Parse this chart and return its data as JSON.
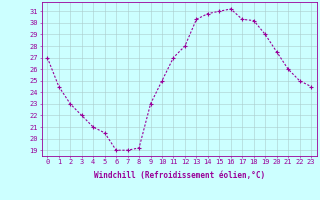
{
  "x": [
    0,
    1,
    2,
    3,
    4,
    5,
    6,
    7,
    8,
    9,
    10,
    11,
    12,
    13,
    14,
    15,
    16,
    17,
    18,
    19,
    20,
    21,
    22,
    23
  ],
  "y": [
    27,
    24.5,
    23,
    22,
    21,
    20.5,
    19,
    19,
    19.2,
    23,
    25,
    27,
    28,
    30.3,
    30.8,
    31,
    31.2,
    30.3,
    30.2,
    29,
    27.5,
    26,
    25,
    24.5
  ],
  "line_color": "#990099",
  "marker": "+",
  "marker_size": 3,
  "bg_color": "#ccffff",
  "grid_color": "#aacccc",
  "axis_color": "#990099",
  "tick_color": "#990099",
  "xlabel": "Windchill (Refroidissement éolien,°C)",
  "xlabel_fontsize": 5.5,
  "ylabel_ticks": [
    19,
    20,
    21,
    22,
    23,
    24,
    25,
    26,
    27,
    28,
    29,
    30,
    31
  ],
  "xlim": [
    -0.5,
    23.5
  ],
  "ylim": [
    18.5,
    31.8
  ],
  "xtick_labels": [
    "0",
    "1",
    "2",
    "3",
    "4",
    "5",
    "6",
    "7",
    "8",
    "9",
    "10",
    "11",
    "12",
    "13",
    "14",
    "15",
    "16",
    "17",
    "18",
    "19",
    "20",
    "21",
    "22",
    "23"
  ],
  "tick_fontsize": 5.0,
  "line_width": 0.8,
  "fig_width": 3.2,
  "fig_height": 2.0,
  "dpi": 100
}
